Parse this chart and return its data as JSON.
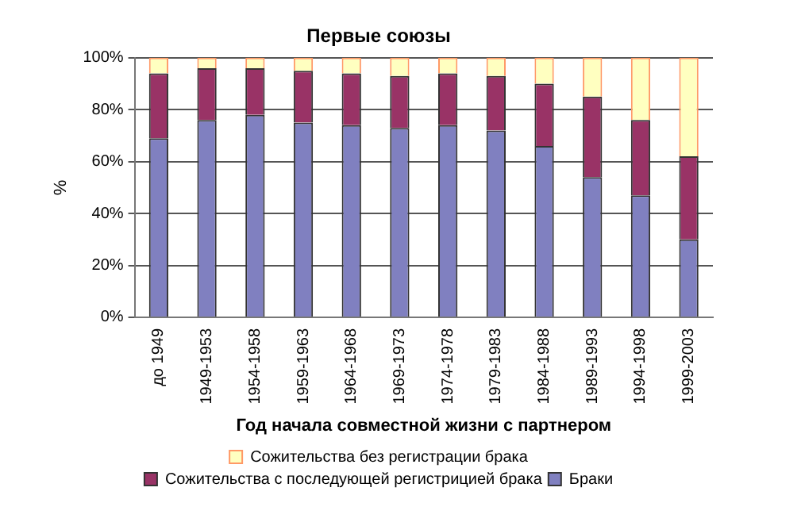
{
  "chart_data": {
    "type": "bar",
    "title": "Первые союзы",
    "xlabel": "Год начала совместной жизни с партнером",
    "ylabel": "%",
    "categories": [
      "до 1949",
      "1949-1953",
      "1954-1958",
      "1959-1963",
      "1964-1968",
      "1969-1973",
      "1974-1978",
      "1979-1983",
      "1984-1988",
      "1989-1993",
      "1994-1998",
      "1999-2003"
    ],
    "stacked": true,
    "series": [
      {
        "name": "Браки",
        "color": "#8080c0",
        "values": [
          69,
          76,
          78,
          75,
          74,
          73,
          74,
          72,
          66,
          54,
          47,
          30
        ]
      },
      {
        "name": "Сожительства с последующей регистрицией брака",
        "color": "#993366",
        "values": [
          25,
          20,
          18,
          20,
          20,
          20,
          20,
          21,
          24,
          31,
          29,
          32
        ]
      },
      {
        "name": "Сожительства без регистрации брака",
        "color": "#ffffc0",
        "values": [
          6,
          4,
          4,
          5,
          6,
          7,
          6,
          7,
          10,
          15,
          24,
          38
        ]
      }
    ],
    "ylim": [
      0,
      100
    ],
    "yticks": [
      {
        "value": 0,
        "label": "0%"
      },
      {
        "value": 20,
        "label": "20%"
      },
      {
        "value": 40,
        "label": "40%"
      },
      {
        "value": 60,
        "label": "60%"
      },
      {
        "value": 80,
        "label": "80%"
      },
      {
        "value": 100,
        "label": "100%"
      }
    ],
    "grid": "y",
    "legend": "bottom"
  }
}
